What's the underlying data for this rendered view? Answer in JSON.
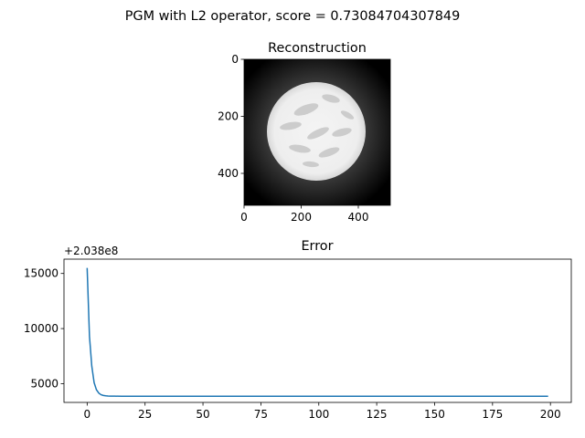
{
  "suptitle": "PGM with L2 operator, score = 0.73084704307849",
  "colors": {
    "line": "#1f77b4",
    "axes": "#000000",
    "background": "#ffffff"
  },
  "chart_data": [
    {
      "type": "heatmap",
      "title": "Reconstruction",
      "image_description_kind": "grayscale",
      "xlim": [
        0,
        512
      ],
      "ylim": [
        512,
        0
      ],
      "xticks": [
        0,
        200,
        400
      ],
      "yticks": [
        0,
        200,
        400
      ],
      "xtick_labels": [
        "0",
        "200",
        "400"
      ],
      "ytick_labels": [
        "0",
        "200",
        "400"
      ]
    },
    {
      "type": "line",
      "title": "Error",
      "offset_label": "+2.038e8",
      "xlim": [
        -10,
        209
      ],
      "ylim": [
        3300,
        16300
      ],
      "xticks": [
        0,
        25,
        50,
        75,
        100,
        125,
        150,
        175,
        200
      ],
      "yticks": [
        5000,
        10000,
        15000
      ],
      "xtick_labels": [
        "0",
        "25",
        "50",
        "75",
        "100",
        "125",
        "150",
        "175",
        "200"
      ],
      "ytick_labels": [
        "5000",
        "10000",
        "15000"
      ],
      "series": [
        {
          "x": [
            0,
            1,
            2,
            3,
            4,
            5,
            6,
            7,
            8,
            9,
            10,
            12,
            15,
            20,
            30,
            50,
            100,
            150,
            199
          ],
          "y": [
            15500,
            9300,
            6600,
            5100,
            4450,
            4150,
            4000,
            3930,
            3900,
            3880,
            3870,
            3865,
            3862,
            3860,
            3860,
            3860,
            3860,
            3860,
            3860
          ]
        }
      ]
    }
  ]
}
